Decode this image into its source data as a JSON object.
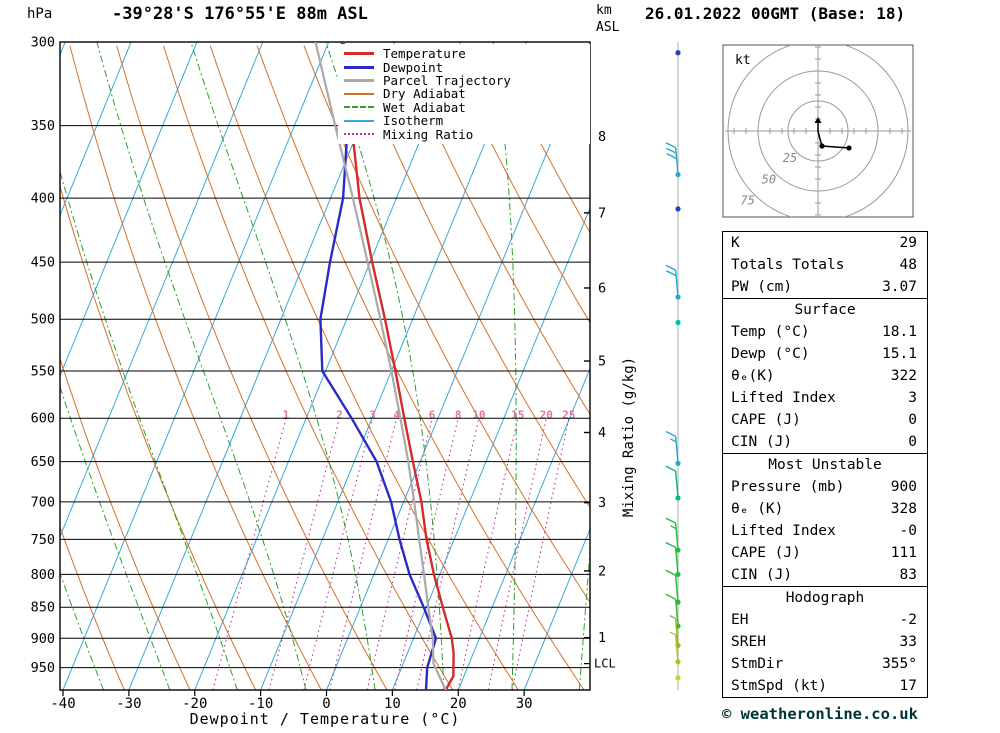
{
  "header": {
    "station": "-39°28'S 176°55'E 88m ASL",
    "run": "26.01.2022 00GMT (Base: 18)",
    "pressure_unit": "hPa",
    "altitude_unit_line1": "km",
    "altitude_unit_line2": "ASL"
  },
  "chart_data": {
    "type": "line",
    "title": "Skew-T log-P sounding",
    "xlabel": "Dewpoint / Temperature (°C)",
    "ylabel": "hPa",
    "x_ticks": [
      -40,
      -30,
      -20,
      -10,
      0,
      10,
      20,
      30
    ],
    "x_range": [
      -40,
      40
    ],
    "pressure_ticks": [
      300,
      350,
      400,
      450,
      500,
      550,
      600,
      650,
      700,
      750,
      800,
      850,
      900,
      950
    ],
    "pressure_range": [
      300,
      990
    ],
    "km_ticks": [
      {
        "km": "1",
        "p": 899
      },
      {
        "km": "2",
        "p": 795
      },
      {
        "km": "3",
        "p": 701
      },
      {
        "km": "4",
        "p": 616
      },
      {
        "km": "5",
        "p": 540
      },
      {
        "km": "6",
        "p": 472
      },
      {
        "km": "7",
        "p": 411
      },
      {
        "km": "8",
        "p": 357
      }
    ],
    "lcl": {
      "label": "LCL",
      "p": 943
    },
    "mixing_axis_label": "Mixing Ratio (g/kg)",
    "mixing_ratio_values": [
      1,
      2,
      3,
      4,
      6,
      8,
      10,
      15,
      20,
      25
    ],
    "series": [
      {
        "name": "Temperature",
        "color": "#d42a2a",
        "width": 2.4,
        "points": [
          [
            990,
            18.1
          ],
          [
            965,
            18.4
          ],
          [
            925,
            17.0
          ],
          [
            900,
            15.8
          ],
          [
            850,
            12.5
          ],
          [
            800,
            9.1
          ],
          [
            750,
            5.8
          ],
          [
            700,
            2.7
          ],
          [
            650,
            -1.1
          ],
          [
            600,
            -5.1
          ],
          [
            550,
            -9.4
          ],
          [
            500,
            -14.2
          ],
          [
            450,
            -19.7
          ],
          [
            400,
            -25.6
          ],
          [
            350,
            -31.3
          ],
          [
            300,
            -37.7
          ]
        ]
      },
      {
        "name": "Dewpoint",
        "color": "#2a2ac8",
        "width": 2.4,
        "points": [
          [
            990,
            15.1
          ],
          [
            950,
            13.9
          ],
          [
            900,
            13.4
          ],
          [
            850,
            9.6
          ],
          [
            800,
            5.4
          ],
          [
            750,
            1.7
          ],
          [
            700,
            -1.9
          ],
          [
            650,
            -6.6
          ],
          [
            600,
            -13.1
          ],
          [
            550,
            -20.5
          ],
          [
            500,
            -24.0
          ],
          [
            450,
            -26.1
          ],
          [
            400,
            -28.1
          ],
          [
            350,
            -31.9
          ],
          [
            300,
            -38.0
          ]
        ]
      },
      {
        "name": "Parcel Trajectory",
        "color": "#aaaaaa",
        "width": 2.2,
        "points": [
          [
            990,
            18.1
          ],
          [
            943,
            14.6
          ],
          [
            900,
            12.9
          ],
          [
            850,
            10.3
          ],
          [
            800,
            7.6
          ],
          [
            750,
            4.7
          ],
          [
            700,
            1.6
          ],
          [
            650,
            -1.8
          ],
          [
            600,
            -5.7
          ],
          [
            550,
            -10.0
          ],
          [
            500,
            -14.9
          ],
          [
            450,
            -20.4
          ],
          [
            400,
            -26.6
          ],
          [
            350,
            -33.8
          ],
          [
            300,
            -42.0
          ]
        ]
      }
    ],
    "background": {
      "isotherm": {
        "color": "#3aa8d8",
        "min": -100,
        "max": 40,
        "step": 10
      },
      "dry_adiabat": {
        "color": "#d2722a",
        "min": -40,
        "max": 160,
        "step": 10
      },
      "wet_adiabat": {
        "color": "#2ca02c",
        "min": -60,
        "max": 40,
        "step": 10
      },
      "mixing_ratio_color": "#c03390",
      "mixing_label_color": "#ee6e96",
      "grid_color": "#000000"
    }
  },
  "legend": {
    "items": [
      {
        "label": "Temperature",
        "color": "#d42a2a",
        "style": "solid",
        "width": 3
      },
      {
        "label": "Dewpoint",
        "color": "#2a2ac8",
        "style": "solid",
        "width": 3
      },
      {
        "label": "Parcel Trajectory",
        "color": "#aaaaaa",
        "style": "solid",
        "width": 3
      },
      {
        "label": "Dry Adiabat",
        "color": "#d2722a",
        "style": "solid",
        "width": 2
      },
      {
        "label": "Wet Adiabat",
        "color": "#2ca02c",
        "style": "dashed",
        "width": 2
      },
      {
        "label": "Isotherm",
        "color": "#3aa8d8",
        "style": "solid",
        "width": 2
      },
      {
        "label": "Mixing Ratio",
        "color": "#c03390",
        "style": "dotted",
        "width": 2
      }
    ]
  },
  "hodograph": {
    "unit": "kt",
    "rings": [
      {
        "kt": 25,
        "r": 30,
        "label": "25"
      },
      {
        "kt": 50,
        "r": 60,
        "label": "50"
      },
      {
        "kt": 75,
        "r": 90,
        "label": "75"
      }
    ],
    "trace": [
      [
        0,
        -10
      ],
      [
        0,
        0
      ],
      [
        2,
        8
      ],
      [
        4,
        15
      ],
      [
        31,
        17
      ]
    ],
    "dots": [
      [
        4,
        15
      ],
      [
        31,
        17
      ]
    ]
  },
  "wind_barbs": [
    {
      "p": 306,
      "speed": 0,
      "color": "#2244bb"
    },
    {
      "p": 383,
      "speed": 30,
      "color": "#22aacc"
    },
    {
      "p": 408,
      "speed": 0,
      "color": "#2244bb"
    },
    {
      "p": 480,
      "speed": 20,
      "color": "#22aacc"
    },
    {
      "p": 503,
      "speed": 0,
      "color": "#00bbbb"
    },
    {
      "p": 652,
      "speed": 15,
      "color": "#22aacc"
    },
    {
      "p": 695,
      "speed": 10,
      "color": "#00bb88"
    },
    {
      "p": 765,
      "speed": 15,
      "color": "#22bb44"
    },
    {
      "p": 800,
      "speed": 10,
      "color": "#22bb44"
    },
    {
      "p": 842,
      "speed": 10,
      "color": "#22bb44"
    },
    {
      "p": 880,
      "speed": 10,
      "color": "#33bb33"
    },
    {
      "p": 912,
      "speed": 7,
      "color": "#88bb22"
    },
    {
      "p": 940,
      "speed": 5,
      "color": "#bbbb22"
    },
    {
      "p": 968,
      "speed": 0,
      "color": "#cccc33"
    }
  ],
  "tables": [
    {
      "header": "",
      "rows": [
        [
          "K",
          "29"
        ],
        [
          "Totals Totals",
          "48"
        ],
        [
          "PW (cm)",
          "3.07"
        ]
      ]
    },
    {
      "header": "Surface",
      "rows": [
        [
          "Temp (°C)",
          "18.1"
        ],
        [
          "Dewp (°C)",
          "15.1"
        ],
        [
          "θₑ(K)",
          "322"
        ],
        [
          "Lifted Index",
          "3"
        ],
        [
          "CAPE (J)",
          "0"
        ],
        [
          "CIN (J)",
          "0"
        ]
      ]
    },
    {
      "header": "Most Unstable",
      "rows": [
        [
          "Pressure (mb)",
          "900"
        ],
        [
          "θₑ (K)",
          "328"
        ],
        [
          "Lifted Index",
          "-0"
        ],
        [
          "CAPE (J)",
          "111"
        ],
        [
          "CIN (J)",
          "83"
        ]
      ]
    },
    {
      "header": "Hodograph",
      "rows": [
        [
          "EH",
          "-2"
        ],
        [
          "SREH",
          "33"
        ],
        [
          "StmDir",
          "355°"
        ],
        [
          "StmSpd (kt)",
          "17"
        ]
      ]
    }
  ],
  "footer": {
    "copyright": "© weatheronline.co.uk"
  }
}
